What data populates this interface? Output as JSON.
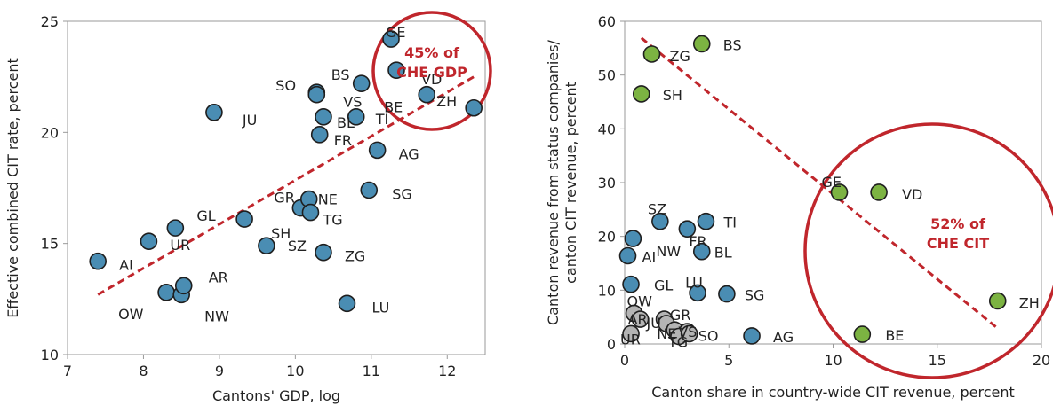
{
  "chart_data": [
    {
      "type": "scatter",
      "xlabel": "Cantons' GDP, log",
      "ylabel": "Effective combined CIT rate, percent",
      "xlim": [
        7,
        12.5
      ],
      "ylim": [
        10,
        25
      ],
      "xticks": [
        "7",
        "8",
        "9",
        "10",
        "11",
        "12"
      ],
      "yticks": [
        "10",
        "15",
        "20",
        "25"
      ],
      "grid": false,
      "point_color": "#4a8db3",
      "annotation": {
        "lines": [
          "45% of",
          "CHE GDP"
        ],
        "color": "#c0262c"
      },
      "trendline": {
        "x": [
          7.4,
          12.35
        ],
        "y": [
          12.7,
          22.5
        ],
        "color": "#c0262c",
        "style": "dashed"
      },
      "points": [
        {
          "label": "AI",
          "x": 7.4,
          "y": 14.2
        },
        {
          "label": "UR",
          "x": 8.07,
          "y": 15.1
        },
        {
          "label": "GL",
          "x": 8.42,
          "y": 15.7
        },
        {
          "label": "OW",
          "x": 8.3,
          "y": 12.8
        },
        {
          "label": "NW",
          "x": 8.5,
          "y": 12.7
        },
        {
          "label": "AR",
          "x": 8.53,
          "y": 13.1
        },
        {
          "label": "JU",
          "x": 8.93,
          "y": 20.9
        },
        {
          "label": "SH",
          "x": 9.33,
          "y": 16.1
        },
        {
          "label": "SZ",
          "x": 9.62,
          "y": 14.9
        },
        {
          "label": "GR",
          "x": 10.07,
          "y": 16.6
        },
        {
          "label": "NE",
          "x": 10.18,
          "y": 17.0
        },
        {
          "label": "TG",
          "x": 10.2,
          "y": 16.4
        },
        {
          "label": "ZG",
          "x": 10.37,
          "y": 14.6
        },
        {
          "label": "SO",
          "x": 10.28,
          "y": 21.8
        },
        {
          "label": "VS",
          "x": 10.28,
          "y": 21.7
        },
        {
          "label": "FR",
          "x": 10.32,
          "y": 19.9
        },
        {
          "label": "BL",
          "x": 10.37,
          "y": 20.7
        },
        {
          "label": "TI",
          "x": 10.8,
          "y": 20.7
        },
        {
          "label": "LU",
          "x": 10.68,
          "y": 12.3
        },
        {
          "label": "BS",
          "x": 10.87,
          "y": 22.2
        },
        {
          "label": "SG",
          "x": 10.97,
          "y": 17.4
        },
        {
          "label": "AG",
          "x": 11.08,
          "y": 19.2
        },
        {
          "label": "GE",
          "x": 11.26,
          "y": 24.2
        },
        {
          "label": "VD",
          "x": 11.33,
          "y": 22.8
        },
        {
          "label": "BE",
          "x": 11.73,
          "y": 21.7
        },
        {
          "label": "ZH",
          "x": 12.35,
          "y": 21.1
        }
      ]
    },
    {
      "type": "scatter",
      "xlabel": "Canton share in country-wide CIT revenue, percent",
      "ylabel_lines": [
        "Canton revenue from status companies/",
        "canton CIT revenue, percent"
      ],
      "xlim": [
        0,
        20
      ],
      "ylim": [
        0,
        60
      ],
      "xticks": [
        "0",
        "5",
        "10",
        "15",
        "20"
      ],
      "yticks": [
        "0",
        "10",
        "20",
        "30",
        "40",
        "50",
        "60"
      ],
      "grid": false,
      "colors": {
        "green": "#7cb342",
        "blue": "#4a8db3",
        "gray": "#b4b4b4"
      },
      "annotation": {
        "lines": [
          "52% of",
          "CHE CIT"
        ],
        "color": "#c0262c"
      },
      "trendline": {
        "x": [
          0.8,
          17.9
        ],
        "y": [
          56.9,
          2.9
        ],
        "color": "#c0262c",
        "style": "dashed"
      },
      "points": [
        {
          "label": "BS",
          "x": 3.7,
          "y": 55.8,
          "color": "green"
        },
        {
          "label": "ZG",
          "x": 1.3,
          "y": 53.9,
          "color": "green"
        },
        {
          "label": "SH",
          "x": 0.8,
          "y": 46.5,
          "color": "green"
        },
        {
          "label": "GE",
          "x": 10.3,
          "y": 28.2,
          "color": "green"
        },
        {
          "label": "VD",
          "x": 12.2,
          "y": 28.2,
          "color": "green"
        },
        {
          "label": "ZH",
          "x": 17.9,
          "y": 8.0,
          "color": "green"
        },
        {
          "label": "BE",
          "x": 11.4,
          "y": 1.8,
          "color": "green"
        },
        {
          "label": "SZ",
          "x": 1.7,
          "y": 22.8,
          "color": "blue"
        },
        {
          "label": "TI",
          "x": 3.9,
          "y": 22.8,
          "color": "blue"
        },
        {
          "label": "FR",
          "x": 3.0,
          "y": 21.4,
          "color": "blue"
        },
        {
          "label": "NW",
          "x": 0.4,
          "y": 19.6,
          "color": "blue"
        },
        {
          "label": "BL",
          "x": 3.7,
          "y": 17.2,
          "color": "blue"
        },
        {
          "label": "AI",
          "x": 0.15,
          "y": 16.4,
          "color": "blue"
        },
        {
          "label": "GL",
          "x": 0.3,
          "y": 11.1,
          "color": "blue"
        },
        {
          "label": "LU",
          "x": 3.5,
          "y": 9.5,
          "color": "blue"
        },
        {
          "label": "SG",
          "x": 4.9,
          "y": 9.3,
          "color": "blue"
        },
        {
          "label": "AG",
          "x": 6.1,
          "y": 1.5,
          "color": "blue"
        },
        {
          "label": "OW",
          "x": 0.45,
          "y": 5.7,
          "color": "gray"
        },
        {
          "label": "AR",
          "x": 0.75,
          "y": 4.6,
          "color": "gray"
        },
        {
          "label": "JU",
          "x": 1.9,
          "y": 4.6,
          "color": "gray"
        },
        {
          "label": "GR",
          "x": 2.0,
          "y": 3.8,
          "color": "gray"
        },
        {
          "label": "NE",
          "x": 2.4,
          "y": 2.6,
          "color": "gray"
        },
        {
          "label": "VS",
          "x": 3.0,
          "y": 2.3,
          "color": "gray"
        },
        {
          "label": "UR",
          "x": 0.3,
          "y": 1.9,
          "color": "gray"
        },
        {
          "label": "TG",
          "x": 2.6,
          "y": 1.4,
          "color": "gray"
        },
        {
          "label": "SO",
          "x": 3.1,
          "y": 1.9,
          "color": "gray"
        }
      ]
    }
  ]
}
